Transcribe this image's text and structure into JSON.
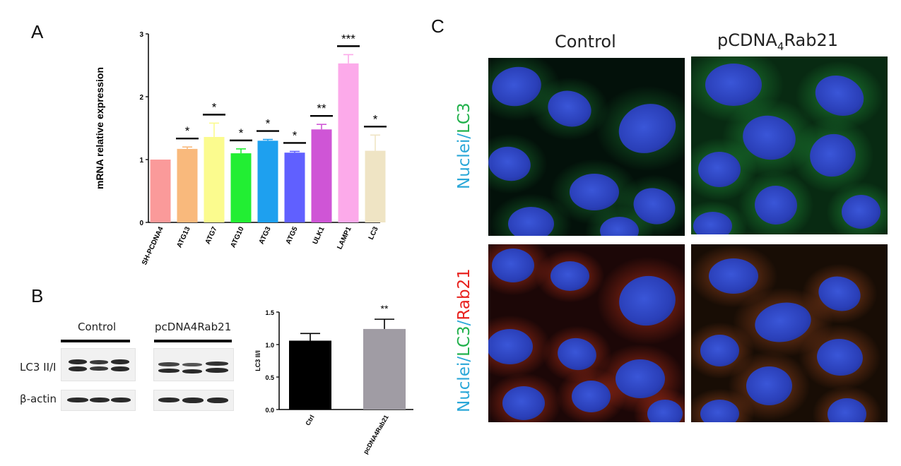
{
  "panels": {
    "a": "A",
    "b": "B",
    "c": "C"
  },
  "chart_data": [
    {
      "type": "bar",
      "ylabel": "mRNA relative expression",
      "ylim": [
        0,
        3
      ],
      "yticks": [
        "0",
        "1",
        "2",
        "3"
      ],
      "categories": [
        "SH-PCDNA4",
        "ATG13",
        "ATG7",
        "ATG10",
        "ATG3",
        "ATG5",
        "ULK1",
        "LAMP1",
        "LC3"
      ],
      "values": [
        1.0,
        1.17,
        1.36,
        1.1,
        1.3,
        1.11,
        1.48,
        2.53,
        1.14
      ],
      "errors": [
        0,
        0.03,
        0.22,
        0.07,
        0.02,
        0.02,
        0.08,
        0.14,
        0.25
      ],
      "significance": [
        "",
        "*",
        "*",
        "*",
        "*",
        "*",
        "**",
        "***",
        "*"
      ],
      "colors": [
        "#fa9a9a",
        "#f9b97c",
        "#fbfb8e",
        "#22ee33",
        "#1ea0ef",
        "#6060ff",
        "#cf55d6",
        "#fcaaea",
        "#efe4c4"
      ]
    },
    {
      "type": "bar",
      "ylabel": "LC3 II/I",
      "ylim": [
        0,
        1.5
      ],
      "yticks": [
        "0.0",
        "0.5",
        "1.0",
        "1.5"
      ],
      "categories": [
        "Ctrl",
        "pcDNA4Rab21"
      ],
      "values": [
        1.06,
        1.24
      ],
      "errors": [
        0.11,
        0.15
      ],
      "significance": [
        "",
        "**"
      ],
      "colors": [
        "#000000",
        "#a09ca4"
      ]
    }
  ],
  "blot": {
    "group_control": "Control",
    "group_rab": "pcDNA4Rab21",
    "row_lc3": "LC3 II/I",
    "row_actin": "β-actin"
  },
  "microscopy": {
    "col_control": "Control",
    "col_rab_prefix": "pCDNA",
    "col_rab_sub": "4",
    "col_rab_suffix": "Rab21",
    "row1_label": {
      "nuclei": "Nuclei",
      "sep": "/",
      "lc3": "LC3"
    },
    "row2_label": {
      "nuclei": "Nuclei",
      "sep1": "/",
      "lc3": "LC3",
      "sep2": "/",
      "rab21": "Rab21"
    }
  }
}
